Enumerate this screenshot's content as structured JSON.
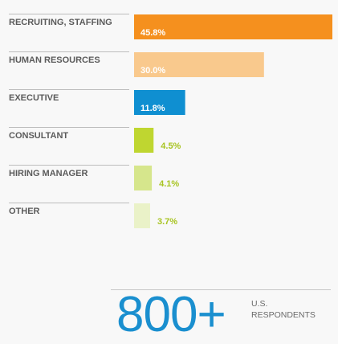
{
  "chart_data": {
    "type": "bar",
    "orientation": "horizontal",
    "categories": [
      "RECRUITING, STAFFING",
      "HUMAN RESOURCES",
      "EXECUTIVE",
      "CONSULTANT",
      "HIRING MANAGER",
      "OTHER"
    ],
    "values": [
      45.8,
      30.0,
      11.8,
      4.5,
      4.1,
      3.7
    ],
    "value_labels": [
      "45.8%",
      "30.0%",
      "11.8%",
      "4.5%",
      "4.1%",
      "3.7%"
    ],
    "bar_colors": [
      "#f5901e",
      "#f9c98d",
      "#0f8fd1",
      "#bfd630",
      "#d6e68c",
      "#eaf2c8"
    ],
    "value_label_colors": [
      "#ffffff",
      "#ffffff",
      "#ffffff",
      "#a8c422",
      "#a8c422",
      "#a8c422"
    ],
    "value_label_inside": [
      true,
      true,
      true,
      false,
      false,
      false
    ],
    "xlim": [
      0,
      45.8
    ],
    "grid": false,
    "legend": "none"
  },
  "stat": {
    "number": "800+",
    "caption_line1": "U.S.",
    "caption_line2": "RESPONDENTS"
  }
}
